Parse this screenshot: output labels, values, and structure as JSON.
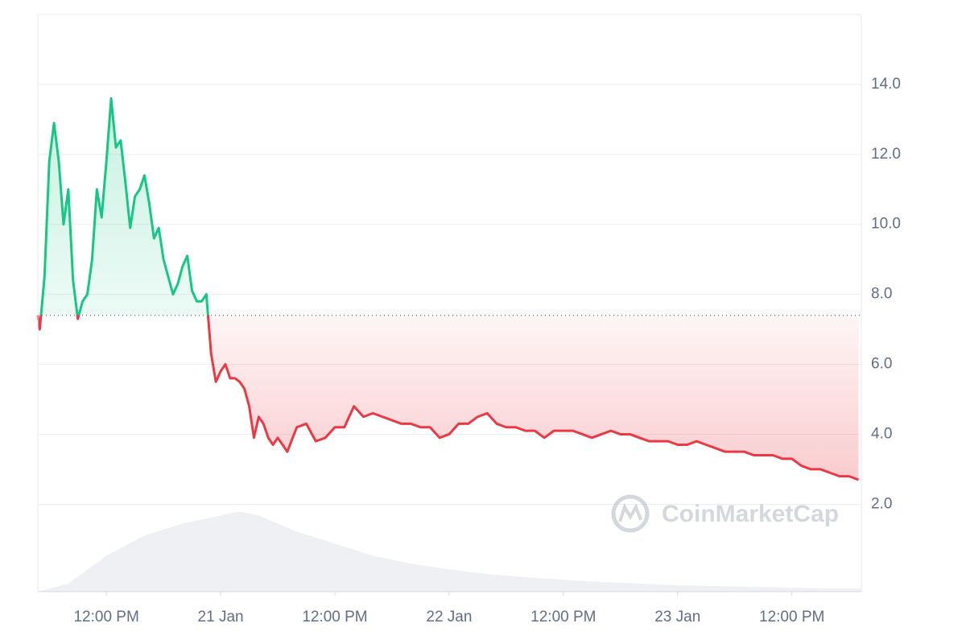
{
  "chart_data": {
    "type": "price-line",
    "x": [
      4.8,
      5,
      5.5,
      6,
      6.5,
      7,
      7.5,
      8,
      8.5,
      9,
      9.5,
      10,
      10.5,
      11,
      11.5,
      12,
      12.5,
      13,
      13.5,
      14,
      14.5,
      15,
      15.5,
      16,
      16.5,
      17,
      17.5,
      18,
      18.5,
      19,
      19.5,
      20,
      20.5,
      21,
      21.5,
      22,
      22.5,
      23,
      23.5,
      24,
      24.5,
      25,
      25.5,
      26,
      26.5,
      27,
      27.5,
      28,
      28.5,
      29,
      29.5,
      30,
      31,
      32,
      33,
      34,
      35,
      36,
      37,
      38,
      39,
      40,
      41,
      42,
      43,
      44,
      45,
      46,
      47,
      48,
      49,
      50,
      51,
      52,
      53,
      54,
      55,
      56,
      57,
      58,
      59,
      60,
      61,
      62,
      63,
      64,
      65,
      66,
      67,
      68,
      69,
      70,
      71,
      72,
      73,
      74,
      75,
      76,
      77,
      78,
      79,
      80,
      81,
      82,
      83,
      84,
      85,
      86,
      87,
      88,
      89,
      90,
      91
    ],
    "values": [
      7.4,
      7.0,
      8.5,
      11.8,
      12.9,
      11.8,
      10.0,
      11.0,
      8.4,
      7.3,
      7.8,
      8.0,
      9.0,
      11.0,
      10.2,
      11.8,
      13.6,
      12.2,
      12.4,
      11.2,
      9.9,
      10.8,
      11.0,
      11.4,
      10.6,
      9.6,
      9.9,
      9.0,
      8.5,
      8.0,
      8.3,
      8.8,
      9.1,
      8.1,
      7.8,
      7.8,
      8.0,
      6.3,
      5.5,
      5.8,
      6.0,
      5.6,
      5.6,
      5.5,
      5.3,
      4.8,
      3.9,
      4.5,
      4.3,
      3.9,
      3.7,
      3.9,
      3.5,
      4.2,
      4.3,
      3.8,
      3.9,
      4.2,
      4.2,
      4.8,
      4.5,
      4.6,
      4.5,
      4.4,
      4.3,
      4.3,
      4.2,
      4.2,
      3.9,
      4.0,
      4.3,
      4.3,
      4.5,
      4.6,
      4.3,
      4.2,
      4.2,
      4.1,
      4.1,
      3.9,
      4.1,
      4.1,
      4.1,
      4.0,
      3.9,
      4.0,
      4.1,
      4.0,
      4.0,
      3.9,
      3.8,
      3.8,
      3.8,
      3.7,
      3.7,
      3.8,
      3.7,
      3.6,
      3.5,
      3.5,
      3.5,
      3.4,
      3.4,
      3.4,
      3.3,
      3.3,
      3.1,
      3.0,
      3.0,
      2.9,
      2.8,
      2.8,
      2.7
    ],
    "baseline": 7.4,
    "up_color": "#16c784",
    "down_color": "#ea3943",
    "volume": {
      "x": [
        4.8,
        8,
        12,
        16,
        20,
        24,
        26,
        28,
        32,
        36,
        40,
        44,
        48,
        52,
        56,
        60,
        64,
        68,
        72,
        76,
        80,
        84,
        88,
        91.3
      ],
      "values": [
        0,
        10,
        45,
        70,
        85,
        95,
        100,
        95,
        75,
        60,
        45,
        35,
        28,
        22,
        18,
        15,
        12,
        10,
        8,
        7,
        6,
        5,
        4,
        4
      ],
      "color": "#eef0f3",
      "y2lim": [
        0,
        720
      ]
    },
    "xlim": [
      4.8,
      91.3
    ],
    "xticks": [
      {
        "value": 12,
        "label": "12:00 PM"
      },
      {
        "value": 24,
        "label": "21 Jan"
      },
      {
        "value": 36,
        "label": "12:00 PM"
      },
      {
        "value": 48,
        "label": "22 Jan"
      },
      {
        "value": 60,
        "label": "12:00 PM"
      },
      {
        "value": 72,
        "label": "23 Jan"
      },
      {
        "value": 84,
        "label": "12:00 PM"
      }
    ],
    "ylim": [
      -0.5,
      16
    ],
    "yticks": [
      {
        "value": 2,
        "label": "2.0"
      },
      {
        "value": 4,
        "label": "4.0"
      },
      {
        "value": 6,
        "label": "6.0"
      },
      {
        "value": 8,
        "label": "8.0"
      },
      {
        "value": 10,
        "label": "10.0"
      },
      {
        "value": 12,
        "label": "12.0"
      },
      {
        "value": 14,
        "label": "14.0"
      }
    ],
    "grid": true,
    "watermark": "CoinMarketCap"
  }
}
